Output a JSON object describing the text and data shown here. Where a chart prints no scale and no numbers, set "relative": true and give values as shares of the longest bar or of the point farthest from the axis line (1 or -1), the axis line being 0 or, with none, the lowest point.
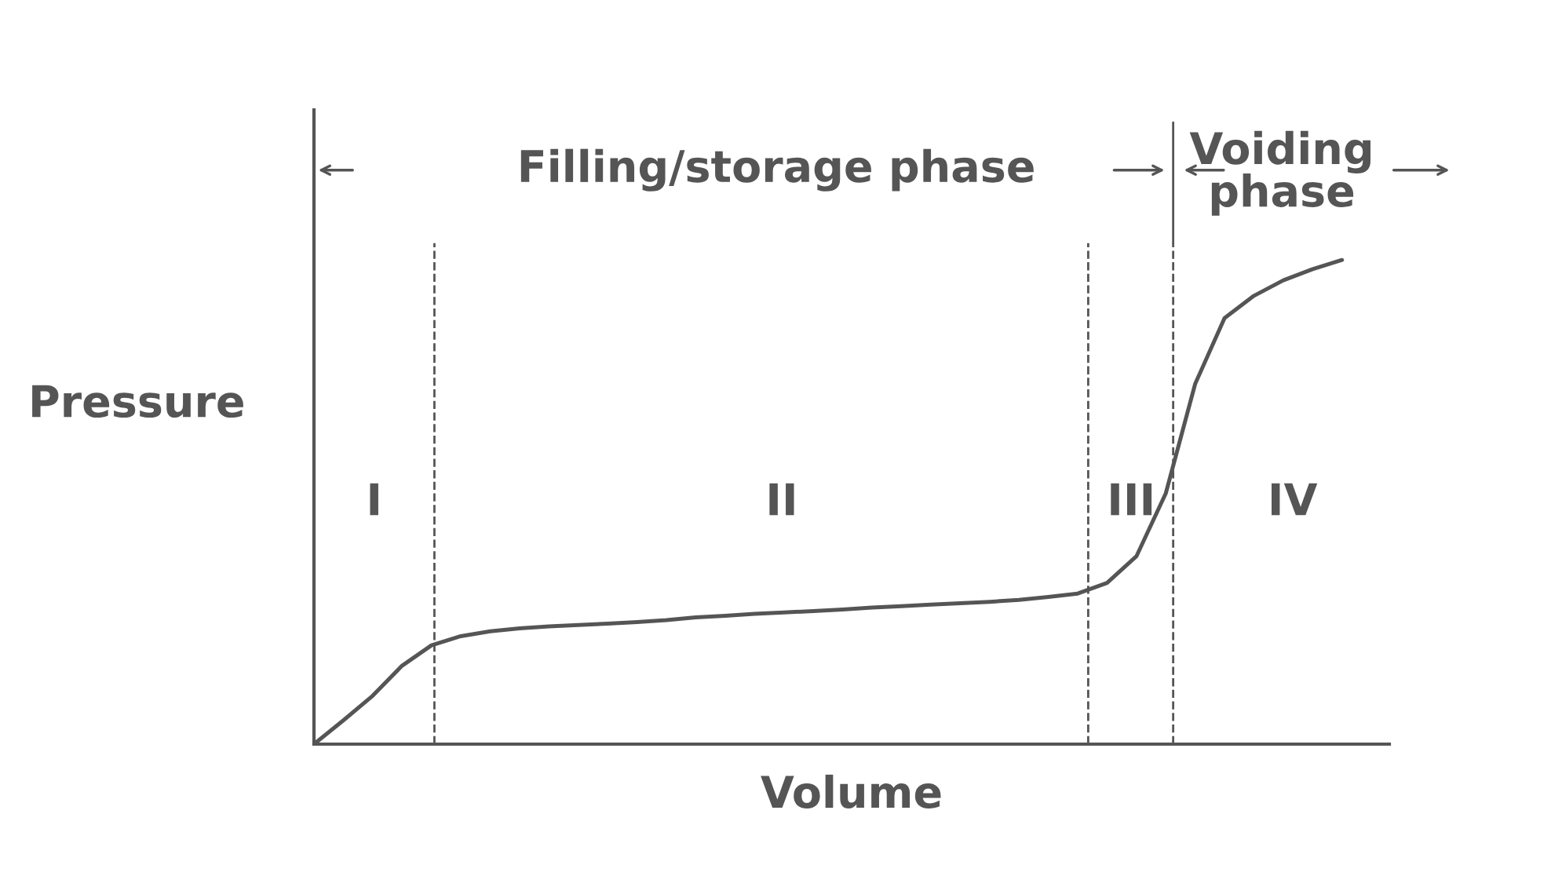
{
  "chart_data": {
    "type": "line",
    "relative": true,
    "xlabel": "Volume",
    "ylabel": "Pressure",
    "marker": "none",
    "line_style": "solid",
    "categories": [
      null,
      null,
      null,
      null,
      null,
      null,
      null,
      null,
      null,
      null,
      null,
      null,
      null,
      null,
      null,
      null,
      null,
      null,
      null,
      null,
      null,
      null,
      null,
      null,
      null,
      null,
      null,
      null,
      null,
      null,
      null,
      null,
      null,
      null,
      null,
      null
    ],
    "series": [
      {
        "color": "#555555",
        "values": [
          0,
          0.049,
          0.1,
          0.162,
          0.204,
          0.223,
          0.233,
          0.239,
          0.243,
          0.246,
          0.249,
          0.252,
          0.256,
          0.262,
          0.265,
          0.269,
          0.272,
          0.275,
          0.278,
          0.282,
          0.285,
          0.288,
          0.291,
          0.294,
          0.298,
          0.304,
          0.311,
          0.333,
          0.388,
          0.518,
          0.744,
          0.88,
          0.926,
          0.958,
          0.981,
          1.0
        ]
      }
    ],
    "annotations": [
      "I",
      "II",
      "III",
      "IV",
      "Filling/storage phase",
      "Voiding\nphase"
    ]
  }
}
